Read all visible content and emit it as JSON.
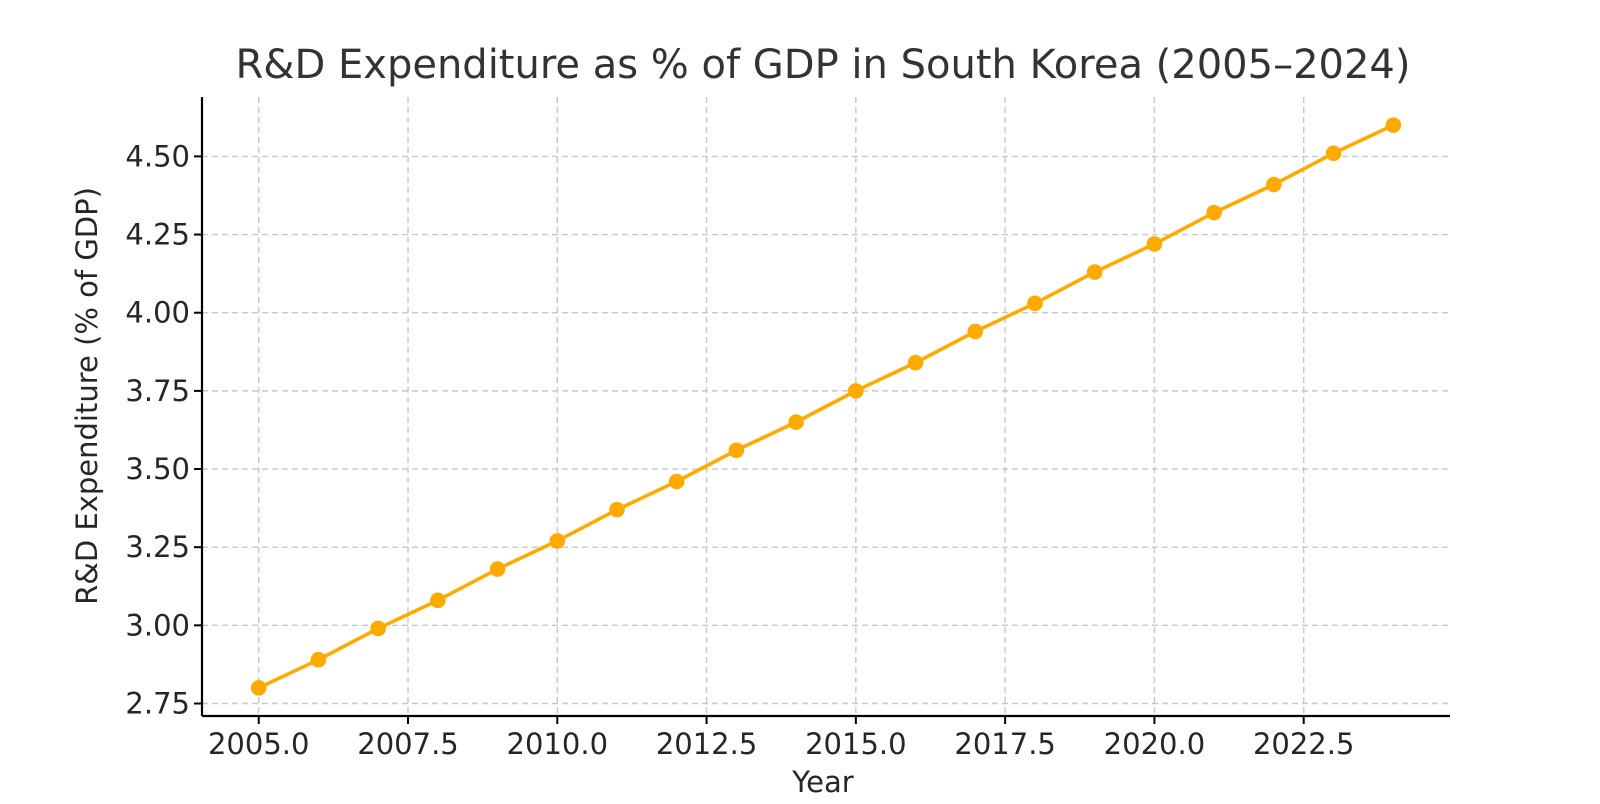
{
  "chart_data": {
    "type": "line",
    "title": "R&D Expenditure as % of GDP in South Korea (2005–2024)",
    "xlabel": "Year",
    "ylabel": "R&D Expenditure (% of GDP)",
    "x": [
      2005,
      2006,
      2007,
      2008,
      2009,
      2010,
      2011,
      2012,
      2013,
      2014,
      2015,
      2016,
      2017,
      2018,
      2019,
      2020,
      2021,
      2022,
      2023,
      2024
    ],
    "series": [
      {
        "values": [
          2.8,
          2.89,
          2.99,
          3.08,
          3.18,
          3.27,
          3.37,
          3.46,
          3.56,
          3.65,
          3.75,
          3.84,
          3.94,
          4.03,
          4.13,
          4.22,
          4.32,
          4.41,
          4.51,
          4.6
        ],
        "color": "#FFAA00"
      }
    ],
    "xlim": [
      2004.05,
      2024.95
    ],
    "ylim": [
      2.71,
      4.69
    ],
    "x_ticks": [
      2005.0,
      2007.5,
      2010.0,
      2012.5,
      2015.0,
      2017.5,
      2020.0,
      2022.5
    ],
    "x_tick_labels": [
      "2005.0",
      "2007.5",
      "2010.0",
      "2012.5",
      "2015.0",
      "2017.5",
      "2020.0",
      "2022.5"
    ],
    "y_ticks": [
      2.75,
      3.0,
      3.25,
      3.5,
      3.75,
      4.0,
      4.25,
      4.5
    ],
    "y_tick_labels": [
      "2.75",
      "3.00",
      "3.25",
      "3.50",
      "3.75",
      "4.00",
      "4.25",
      "4.50"
    ],
    "grid": true,
    "legend": "none"
  }
}
